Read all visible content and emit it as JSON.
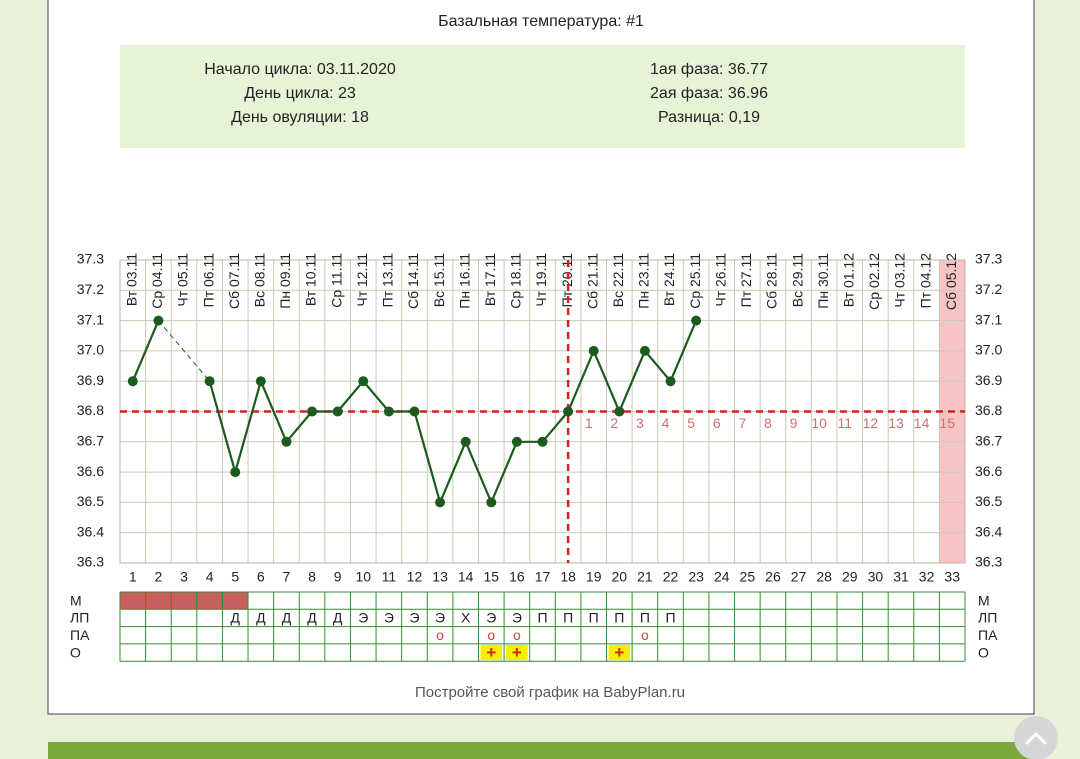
{
  "title": "Базальная температура: #1",
  "info": {
    "left": [
      "Начало цикла: 03.11.2020",
      "День цикла: 23",
      "День овуляции: 18"
    ],
    "right": [
      "1ая фаза: 36.77",
      "2ая фаза: 36.96",
      "Разница: 0,19"
    ]
  },
  "chart_data": {
    "type": "line",
    "dates": [
      "Вт 03.11",
      "Ср 04.11",
      "Чт 05.11",
      "Пт 06.11",
      "Сб 07.11",
      "Вс 08.11",
      "Пн 09.11",
      "Вт 10.11",
      "Ср 11.11",
      "Чт 12.11",
      "Пт 13.11",
      "Сб 14.11",
      "Вс 15.11",
      "Пн 16.11",
      "Вт 17.11",
      "Ср 18.11",
      "Чт 19.11",
      "Пт 20.11",
      "Сб 21.11",
      "Вс 22.11",
      "Пн 23.11",
      "Вт 24.11",
      "Ср 25.11",
      "Чт 26.11",
      "Пт 27.11",
      "Сб 28.11",
      "Вс 29.11",
      "Пн 30.11",
      "Вт 01.12",
      "Ср 02.12",
      "Чт 03.12",
      "Пт 04.12",
      "Сб 05.12"
    ],
    "x": [
      1,
      2,
      3,
      4,
      5,
      6,
      7,
      8,
      9,
      10,
      11,
      12,
      13,
      14,
      15,
      16,
      17,
      18,
      19,
      20,
      21,
      22,
      23,
      24,
      25,
      26,
      27,
      28,
      29,
      30,
      31,
      32,
      33
    ],
    "xlim": [
      0.5,
      33.5
    ],
    "ylim": [
      36.3,
      37.3
    ],
    "yticks": [
      37.3,
      37.2,
      37.1,
      {
        "value": 37,
        "label": "37.0"
      },
      36.9,
      36.8,
      36.7,
      36.6,
      36.5,
      36.4,
      36.3
    ],
    "series": [
      {
        "color": "#1d5a1d",
        "values": [
          36.9,
          37.1,
          null,
          36.9,
          36.6,
          36.9,
          36.7,
          36.8,
          36.8,
          36.9,
          36.8,
          36.8,
          36.5,
          36.7,
          36.5,
          36.7,
          36.7,
          36.8,
          37.0,
          36.8,
          37.0,
          36.9,
          37.1,
          null,
          null,
          null,
          null,
          null,
          null,
          null,
          null,
          null,
          null
        ]
      }
    ],
    "gap_style": "dashed",
    "grid": true,
    "coverline": 36.8,
    "ovulation_day": 18,
    "marker_color": "#d42020",
    "post_ovulation_days": [
      1,
      2,
      3,
      4,
      5,
      6,
      7,
      8,
      9,
      10,
      11,
      12,
      13,
      14,
      15
    ],
    "highlight_day": 33,
    "highlight_color": "#f7c4c4"
  },
  "cycle_table": {
    "rows": [
      {
        "label": "М",
        "days": [
          1,
          2,
          3,
          4,
          5
        ],
        "color": "#c86060"
      },
      {
        "label": "ЛП",
        "cells": [
          null,
          null,
          null,
          null,
          "Д",
          "Д",
          "Д",
          "Д",
          "Д",
          "Э",
          "Э",
          "Э",
          "Э",
          "Х",
          "Э",
          "Э",
          "П",
          "П",
          "П",
          "П",
          "П",
          "П",
          null,
          null,
          null,
          null,
          null,
          null,
          null,
          null,
          null,
          null,
          null
        ]
      },
      {
        "label": "ПА",
        "cells": [
          null,
          null,
          null,
          null,
          null,
          null,
          null,
          null,
          null,
          null,
          null,
          null,
          "о",
          null,
          "о",
          "о",
          null,
          null,
          null,
          null,
          "о",
          null,
          null,
          null,
          null,
          null,
          null,
          null,
          null,
          null,
          null,
          null,
          null
        ],
        "text_color": "#d04040"
      },
      {
        "label": "О",
        "cells": [
          null,
          null,
          null,
          null,
          null,
          null,
          null,
          null,
          null,
          null,
          null,
          null,
          null,
          null,
          "+",
          "+",
          null,
          null,
          null,
          "+",
          null,
          null,
          null,
          null,
          null,
          null,
          null,
          null,
          null,
          null,
          null,
          null,
          null
        ],
        "color": "#f5f000",
        "text_color": "#d02020"
      }
    ]
  },
  "footer": "Постройте свой график на BabyPlan.ru"
}
